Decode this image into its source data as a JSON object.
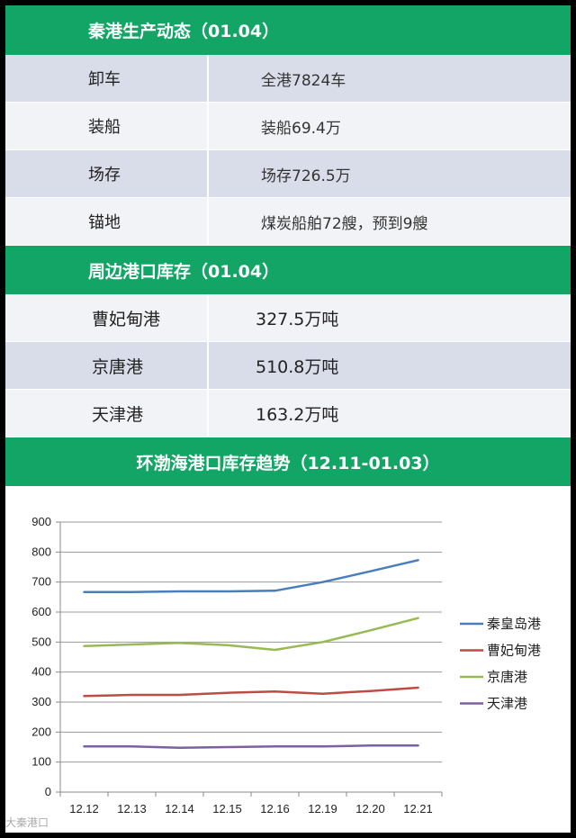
{
  "section1": {
    "title": "秦港生产动态（01.04）",
    "rows": [
      {
        "label": "卸车",
        "value": "全港7824车"
      },
      {
        "label": "装船",
        "value": "装船69.4万"
      },
      {
        "label": "场存",
        "value": "场存726.5万"
      },
      {
        "label": "锚地",
        "value": "煤炭船舶72艘，预到9艘"
      }
    ]
  },
  "section2": {
    "title": "周边港口库存（01.04）",
    "rows": [
      {
        "label": "曹妃甸港",
        "value": "327.5万吨"
      },
      {
        "label": "京唐港",
        "value": "510.8万吨"
      },
      {
        "label": "天津港",
        "value": "163.2万吨"
      }
    ]
  },
  "section3": {
    "title": "环渤海港口库存趋势（12.11-01.03）"
  },
  "chart_data": {
    "type": "line",
    "title": "环渤海港口库存趋势（12.11-01.03）",
    "categories": [
      "12.12",
      "12.13",
      "12.14",
      "12.15",
      "12.16",
      "12.19",
      "12.20",
      "12.21"
    ],
    "ylim": [
      0,
      900
    ],
    "yticks": [
      0,
      100,
      200,
      300,
      400,
      500,
      600,
      700,
      800,
      900
    ],
    "grid": true,
    "legend": "right",
    "series": [
      {
        "name": "秦皇岛港",
        "color": "#4a7ebb",
        "values": [
          667,
          667,
          669,
          669,
          671,
          700,
          736,
          773
        ]
      },
      {
        "name": "曹妃甸港",
        "color": "#be4b48",
        "values": [
          320,
          324,
          324,
          331,
          335,
          328,
          337,
          348
        ]
      },
      {
        "name": "京唐港",
        "color": "#98b954",
        "values": [
          487,
          492,
          497,
          490,
          474,
          500,
          539,
          580
        ]
      },
      {
        "name": "天津港",
        "color": "#7d60a0",
        "values": [
          152,
          152,
          148,
          150,
          152,
          152,
          155,
          155
        ]
      }
    ]
  },
  "watermark": "大秦港口"
}
